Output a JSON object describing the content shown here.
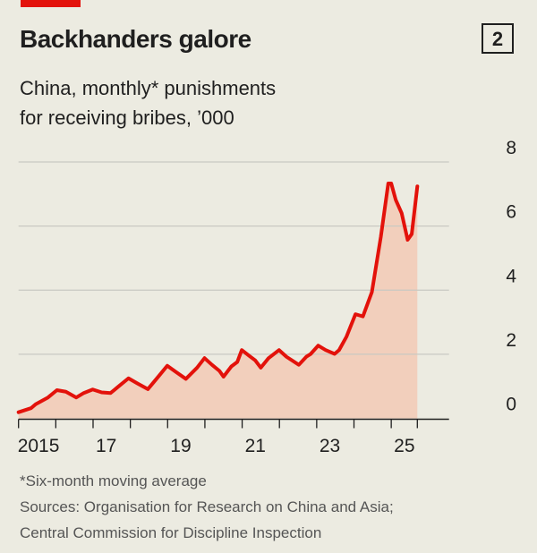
{
  "header": {
    "title": "Backhanders galore",
    "badge": "2",
    "subtitle_line1": "China, monthly* punishments",
    "subtitle_line2": "for receiving bribes, ’000"
  },
  "footer": {
    "note": "*Six-month moving average",
    "sources_line1": "Sources: Organisation for Research on China and Asia;",
    "sources_line2": "Central Commission for Discipline Inspection"
  },
  "colors": {
    "line": "#e3120b",
    "fill": "#f2cfbc",
    "grid": "#c9c9c2",
    "accent": "#e3120b"
  },
  "chart_data": {
    "type": "area",
    "title": "Backhanders galore",
    "subtitle": "China, monthly* punishments for receiving bribes, ’000",
    "xlim": [
      2015,
      2026.55
    ],
    "ylim": [
      0,
      8
    ],
    "yticks": [
      0,
      2,
      4,
      6,
      8
    ],
    "xticks": [
      2015,
      2016,
      2017,
      2018,
      2019,
      2020,
      2021,
      2022,
      2023,
      2024,
      2025
    ],
    "xtick_labels": [
      {
        "x": 2015,
        "label": "2015"
      },
      {
        "x": 2017,
        "label": "17"
      },
      {
        "x": 2019,
        "label": "19"
      },
      {
        "x": 2021,
        "label": "21"
      },
      {
        "x": 2023,
        "label": "23"
      },
      {
        "x": 2025,
        "label": "25"
      }
    ],
    "grid": true,
    "yaxis_position": "right",
    "x": [
      2015.0,
      2015.34,
      2015.46,
      2015.79,
      2016.03,
      2016.27,
      2016.55,
      2016.75,
      2016.99,
      2017.23,
      2017.47,
      2017.71,
      2017.95,
      2018.19,
      2018.47,
      2018.75,
      2018.99,
      2019.23,
      2019.49,
      2019.79,
      2019.99,
      2020.19,
      2020.39,
      2020.5,
      2020.71,
      2020.87,
      2020.99,
      2021.19,
      2021.35,
      2021.5,
      2021.71,
      2021.99,
      2022.19,
      2022.52,
      2022.72,
      2022.84,
      2023.04,
      2023.24,
      2023.48,
      2023.6,
      2023.8,
      2024.04,
      2024.24,
      2024.48,
      2024.72,
      2024.92,
      2025.0,
      2025.12,
      2025.28,
      2025.44,
      2025.55,
      2025.7
    ],
    "values": [
      0.19,
      0.32,
      0.44,
      0.65,
      0.88,
      0.83,
      0.65,
      0.79,
      0.9,
      0.81,
      0.79,
      1.02,
      1.25,
      1.09,
      0.91,
      1.3,
      1.64,
      1.44,
      1.23,
      1.58,
      1.88,
      1.67,
      1.48,
      1.3,
      1.62,
      1.76,
      2.13,
      1.95,
      1.81,
      1.58,
      1.88,
      2.13,
      1.92,
      1.67,
      1.92,
      2.01,
      2.27,
      2.13,
      2.01,
      2.13,
      2.55,
      3.25,
      3.18,
      3.94,
      5.66,
      7.33,
      7.33,
      6.82,
      6.4,
      5.57,
      5.75,
      7.24
    ]
  }
}
